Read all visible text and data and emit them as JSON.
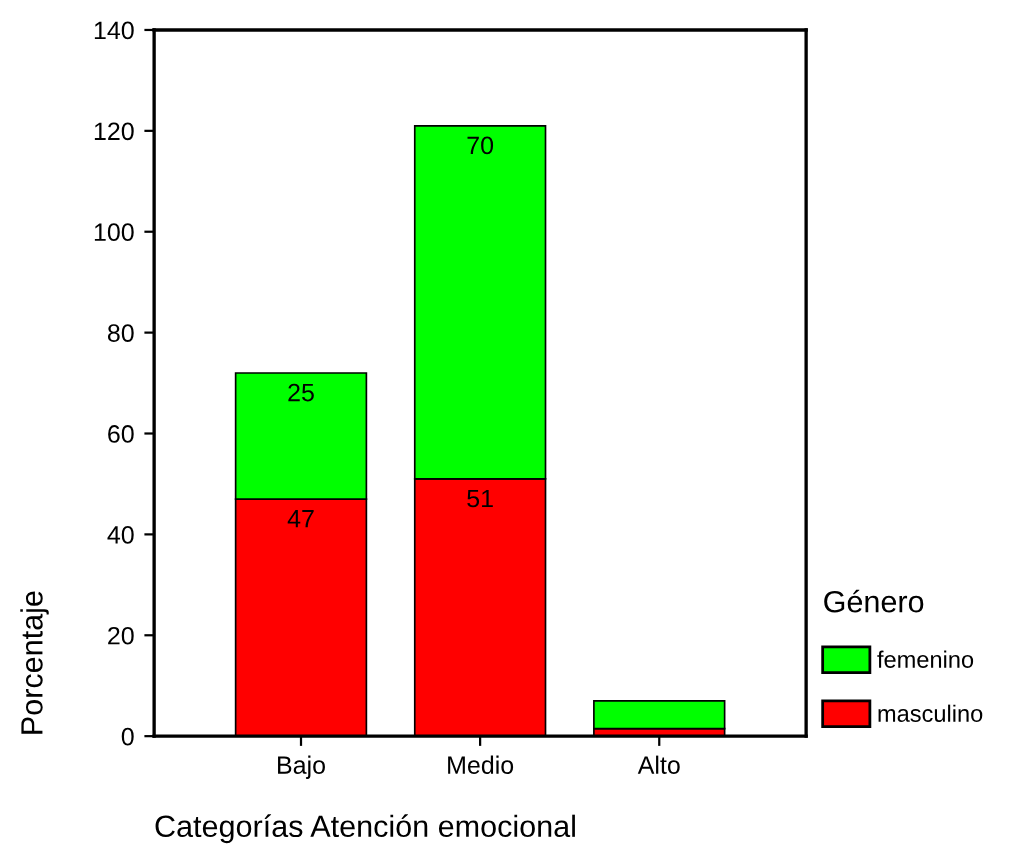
{
  "chart_data": {
    "type": "bar",
    "stacked": true,
    "xlabel": "Categorías Atención emocional",
    "ylabel": "Porcentaje",
    "legend_title": "Género",
    "categories": [
      "Bajo",
      "Medio",
      "Alto"
    ],
    "series": [
      {
        "name": "masculino",
        "color": "#ff0000",
        "values": [
          47,
          51,
          1.5
        ],
        "value_labels": [
          "47",
          "51",
          null
        ]
      },
      {
        "name": "femenino",
        "color": "#00ff00",
        "values": [
          25,
          70,
          5.5
        ],
        "value_labels": [
          "25",
          "70",
          null
        ]
      }
    ],
    "ylim": [
      0,
      140
    ],
    "yticks": [
      0,
      20,
      40,
      60,
      80,
      100,
      120,
      140
    ],
    "grid": false,
    "legend": "right"
  }
}
